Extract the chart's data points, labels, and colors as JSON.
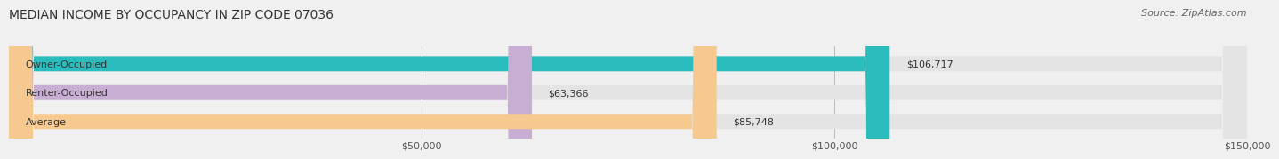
{
  "title": "MEDIAN INCOME BY OCCUPANCY IN ZIP CODE 07036",
  "source": "Source: ZipAtlas.com",
  "categories": [
    "Owner-Occupied",
    "Renter-Occupied",
    "Average"
  ],
  "values": [
    106717,
    63366,
    85748
  ],
  "bar_colors": [
    "#2bbcbe",
    "#c9aed4",
    "#f5c990"
  ],
  "label_texts": [
    "$106,717",
    "$63,366",
    "$85,748"
  ],
  "xlim": [
    0,
    150000
  ],
  "xticks": [
    0,
    50000,
    100000,
    150000
  ],
  "xtick_labels": [
    "",
    "$50,000",
    "$100,000",
    "$150,000"
  ],
  "background_color": "#f0f0f0",
  "bar_background_color": "#e4e4e4",
  "title_fontsize": 10,
  "source_fontsize": 8,
  "label_fontsize": 8,
  "tick_fontsize": 8,
  "bar_height": 0.52
}
